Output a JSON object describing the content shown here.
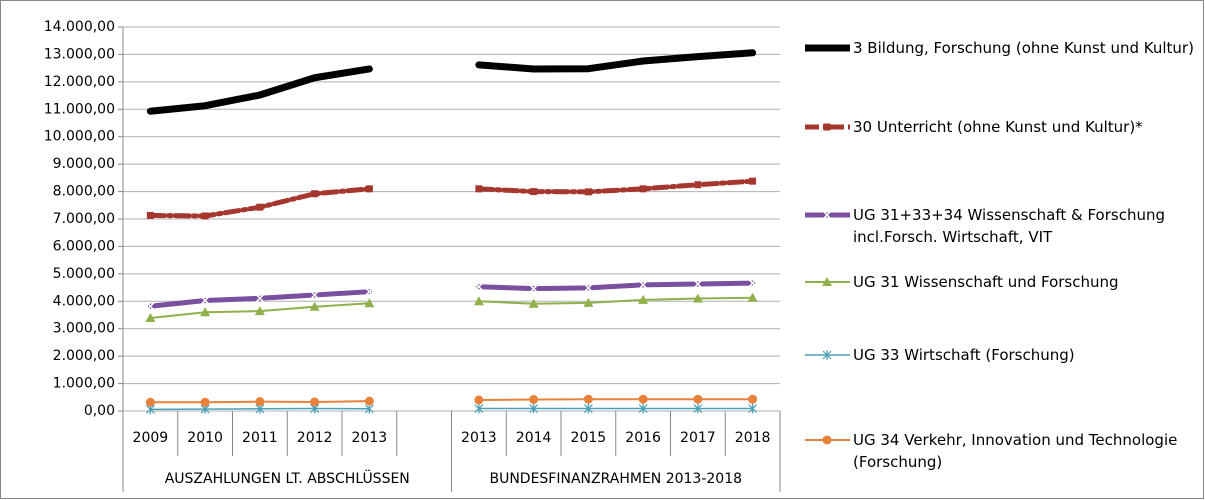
{
  "chart_data": {
    "type": "line",
    "categories": [
      "2009",
      "2010",
      "2011",
      "2012",
      "2013",
      null,
      "2013",
      "2014",
      "2015",
      "2016",
      "2017",
      "2018"
    ],
    "groups": [
      "AUSZAHLUNGEN LT. ABSCHLÜSSEN",
      "BUNDESFINANZRAHMEN 2013-2018"
    ],
    "series": [
      {
        "name": "3 Bildung, Forschung (ohne Kunst und Kultur)",
        "color": "#000000",
        "marker": "none",
        "values": [
          10930,
          11130,
          11520,
          12150,
          12470,
          null,
          12620,
          12470,
          12480,
          12760,
          12920,
          13060
        ]
      },
      {
        "name": "30 Unterricht (ohne Kunst und Kultur)*",
        "color": "#a5372f",
        "marker": "square",
        "values": [
          7130,
          7110,
          7430,
          7920,
          8100,
          null,
          8100,
          8000,
          7990,
          8100,
          8250,
          8380
        ]
      },
      {
        "name": "UG 31+33+34 Wissenschaft & Forschung incl.Forsch. Wirtschaft, VIT",
        "color": "#7b4fa0",
        "marker": "x",
        "values": [
          3820,
          4030,
          4110,
          4230,
          4350,
          null,
          4530,
          4460,
          4490,
          4600,
          4630,
          4660
        ]
      },
      {
        "name": "UG 31 Wissenschaft und Forschung",
        "color": "#8fb04a",
        "marker": "triangle",
        "values": [
          3390,
          3600,
          3640,
          3800,
          3930,
          null,
          4000,
          3910,
          3940,
          4050,
          4100,
          4130
        ]
      },
      {
        "name": "UG 33 Wirtschaft (Forschung)",
        "color": "#4aa0b8",
        "marker": "star",
        "values": [
          60,
          70,
          80,
          90,
          80,
          null,
          90,
          90,
          90,
          90,
          90,
          90
        ]
      },
      {
        "name": "UG 34 Verkehr, Innovation und Technologie (Forschung)",
        "color": "#e8813a",
        "marker": "circle",
        "values": [
          320,
          320,
          340,
          330,
          360,
          null,
          400,
          420,
          430,
          430,
          430,
          430
        ]
      }
    ],
    "ylim": [
      0,
      14000
    ],
    "yticks": [
      {
        "value": 0,
        "label": "0,00"
      },
      {
        "value": 1000,
        "label": "1.000,00"
      },
      {
        "value": 2000,
        "label": "2.000,00"
      },
      {
        "value": 3000,
        "label": "3.000,00"
      },
      {
        "value": 4000,
        "label": "4.000,00"
      },
      {
        "value": 5000,
        "label": "5.000,00"
      },
      {
        "value": 6000,
        "label": "6.000,00"
      },
      {
        "value": 7000,
        "label": "7.000,00"
      },
      {
        "value": 8000,
        "label": "8.000,00"
      },
      {
        "value": 9000,
        "label": "9.000,00"
      },
      {
        "value": 10000,
        "label": "10.000,00"
      },
      {
        "value": 11000,
        "label": "11.000,00"
      },
      {
        "value": 12000,
        "label": "12.000,00"
      },
      {
        "value": 13000,
        "label": "13.000,00"
      },
      {
        "value": 14000,
        "label": "14.000,00"
      }
    ],
    "grid": true
  }
}
